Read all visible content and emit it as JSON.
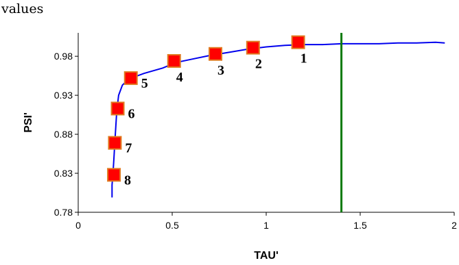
{
  "caption": "values",
  "chart_data": {
    "type": "scatter",
    "xlabel": "TAU'",
    "ylabel": "PSI'",
    "xlim": [
      0,
      2
    ],
    "ylim": [
      0.78,
      1.01
    ],
    "x_ticks": [
      "0",
      "0.5",
      "1",
      "1.5",
      "2"
    ],
    "y_ticks": [
      "0.78",
      "0.83",
      "0.88",
      "0.93",
      "0.98"
    ],
    "grid": false,
    "legend": "none",
    "curve": {
      "color": "#0000ee",
      "points": [
        [
          0.18,
          0.799
        ],
        [
          0.18,
          0.815
        ],
        [
          0.185,
          0.83
        ],
        [
          0.19,
          0.85
        ],
        [
          0.195,
          0.87
        ],
        [
          0.2,
          0.89
        ],
        [
          0.205,
          0.91
        ],
        [
          0.215,
          0.93
        ],
        [
          0.235,
          0.943
        ],
        [
          0.27,
          0.951
        ],
        [
          0.35,
          0.958
        ],
        [
          0.45,
          0.965
        ],
        [
          0.52,
          0.972
        ],
        [
          0.6,
          0.976
        ],
        [
          0.7,
          0.981
        ],
        [
          0.8,
          0.985
        ],
        [
          0.9,
          0.989
        ],
        [
          1.0,
          0.992
        ],
        [
          1.1,
          0.994
        ],
        [
          1.2,
          0.995
        ],
        [
          1.3,
          0.995
        ],
        [
          1.4,
          0.996
        ],
        [
          1.5,
          0.996
        ],
        [
          1.6,
          0.996
        ],
        [
          1.7,
          0.997
        ],
        [
          1.8,
          0.997
        ],
        [
          1.9,
          0.998
        ],
        [
          1.95,
          0.997
        ]
      ]
    },
    "vline": {
      "x": 1.4,
      "color": "#0a7a0a"
    },
    "markers": {
      "color": "#ff0000",
      "border": "#e07a20",
      "points": [
        {
          "label": "1",
          "x": 1.17,
          "y": 0.998
        },
        {
          "label": "2",
          "x": 0.93,
          "y": 0.991
        },
        {
          "label": "3",
          "x": 0.73,
          "y": 0.983
        },
        {
          "label": "4",
          "x": 0.51,
          "y": 0.974
        },
        {
          "label": "5",
          "x": 0.28,
          "y": 0.952
        },
        {
          "label": "6",
          "x": 0.21,
          "y": 0.913
        },
        {
          "label": "7",
          "x": 0.195,
          "y": 0.869
        },
        {
          "label": "8",
          "x": 0.19,
          "y": 0.828
        }
      ]
    }
  }
}
